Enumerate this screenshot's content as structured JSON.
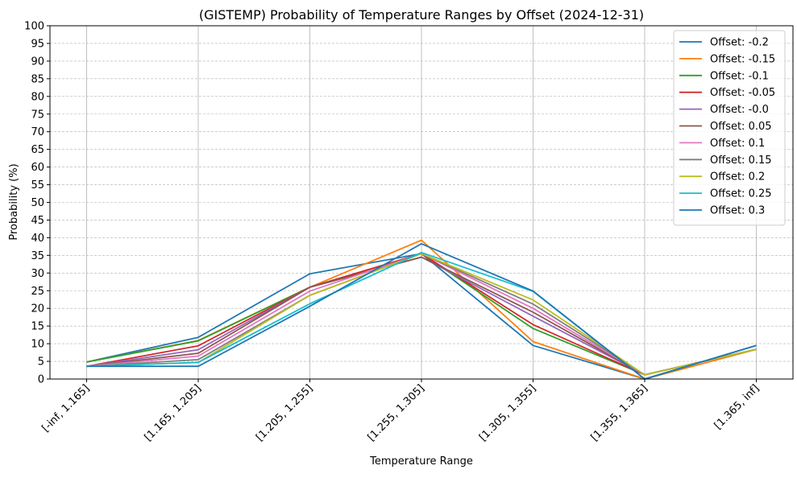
{
  "chart_data": {
    "type": "line",
    "title": "(GISTEMP) Probability of Temperature Ranges by Offset (2024-12-31)",
    "xlabel": "Temperature Range",
    "ylabel": "Probability (%)",
    "ylim": [
      0,
      100
    ],
    "yticks": [
      0,
      5,
      10,
      15,
      20,
      25,
      30,
      35,
      40,
      45,
      50,
      55,
      60,
      65,
      70,
      75,
      80,
      85,
      90,
      95,
      100
    ],
    "categories": [
      "[-inf, 1.165]",
      "[1.165, 1.205]",
      "[1.205, 1.255]",
      "[1.255, 1.305]",
      "[1.305, 1.355]",
      "[1.355, 1.365]",
      "[1.365, inf]"
    ],
    "grid": {
      "x": "solid",
      "y": "dashed"
    },
    "legend_position": "upper-right",
    "series": [
      {
        "name": "Offset: -0.2",
        "color": "#1f77b4",
        "values": [
          4.8,
          11.8,
          29.8,
          35.5,
          9.5,
          0.0,
          9.5
        ]
      },
      {
        "name": "Offset: -0.15",
        "color": "#ff7f0e",
        "values": [
          4.8,
          10.9,
          26.0,
          39.3,
          10.6,
          0.0,
          8.4
        ]
      },
      {
        "name": "Offset: -0.1",
        "color": "#2ca02c",
        "values": [
          4.8,
          10.8,
          26.0,
          35.5,
          14.3,
          1.2,
          8.4
        ]
      },
      {
        "name": "Offset: -0.05",
        "color": "#d62728",
        "values": [
          3.6,
          9.4,
          26.0,
          35.5,
          15.4,
          1.2,
          8.4
        ]
      },
      {
        "name": "Offset: -0.0",
        "color": "#9467bd",
        "values": [
          3.6,
          8.3,
          26.0,
          34.5,
          17.8,
          1.2,
          8.4
        ]
      },
      {
        "name": "Offset: 0.05",
        "color": "#8c564b",
        "values": [
          3.6,
          7.3,
          26.0,
          34.5,
          18.9,
          1.2,
          8.4
        ]
      },
      {
        "name": "Offset: 0.1",
        "color": "#e377c2",
        "values": [
          3.6,
          6.5,
          24.9,
          35.5,
          20.0,
          1.2,
          8.4
        ]
      },
      {
        "name": "Offset: 0.15",
        "color": "#7f7f7f",
        "values": [
          3.6,
          5.5,
          23.7,
          35.5,
          21.2,
          1.2,
          8.4
        ]
      },
      {
        "name": "Offset: 0.2",
        "color": "#bcbd22",
        "values": [
          3.6,
          4.7,
          23.7,
          35.5,
          22.4,
          1.2,
          8.4
        ]
      },
      {
        "name": "Offset: 0.25",
        "color": "#17becf",
        "values": [
          3.6,
          4.7,
          21.3,
          35.8,
          24.8,
          0.0,
          9.5
        ]
      },
      {
        "name": "Offset: 0.3",
        "color": "#1f77b4",
        "values": [
          3.6,
          3.6,
          20.6,
          38.3,
          24.9,
          0.0,
          9.5
        ]
      }
    ]
  }
}
